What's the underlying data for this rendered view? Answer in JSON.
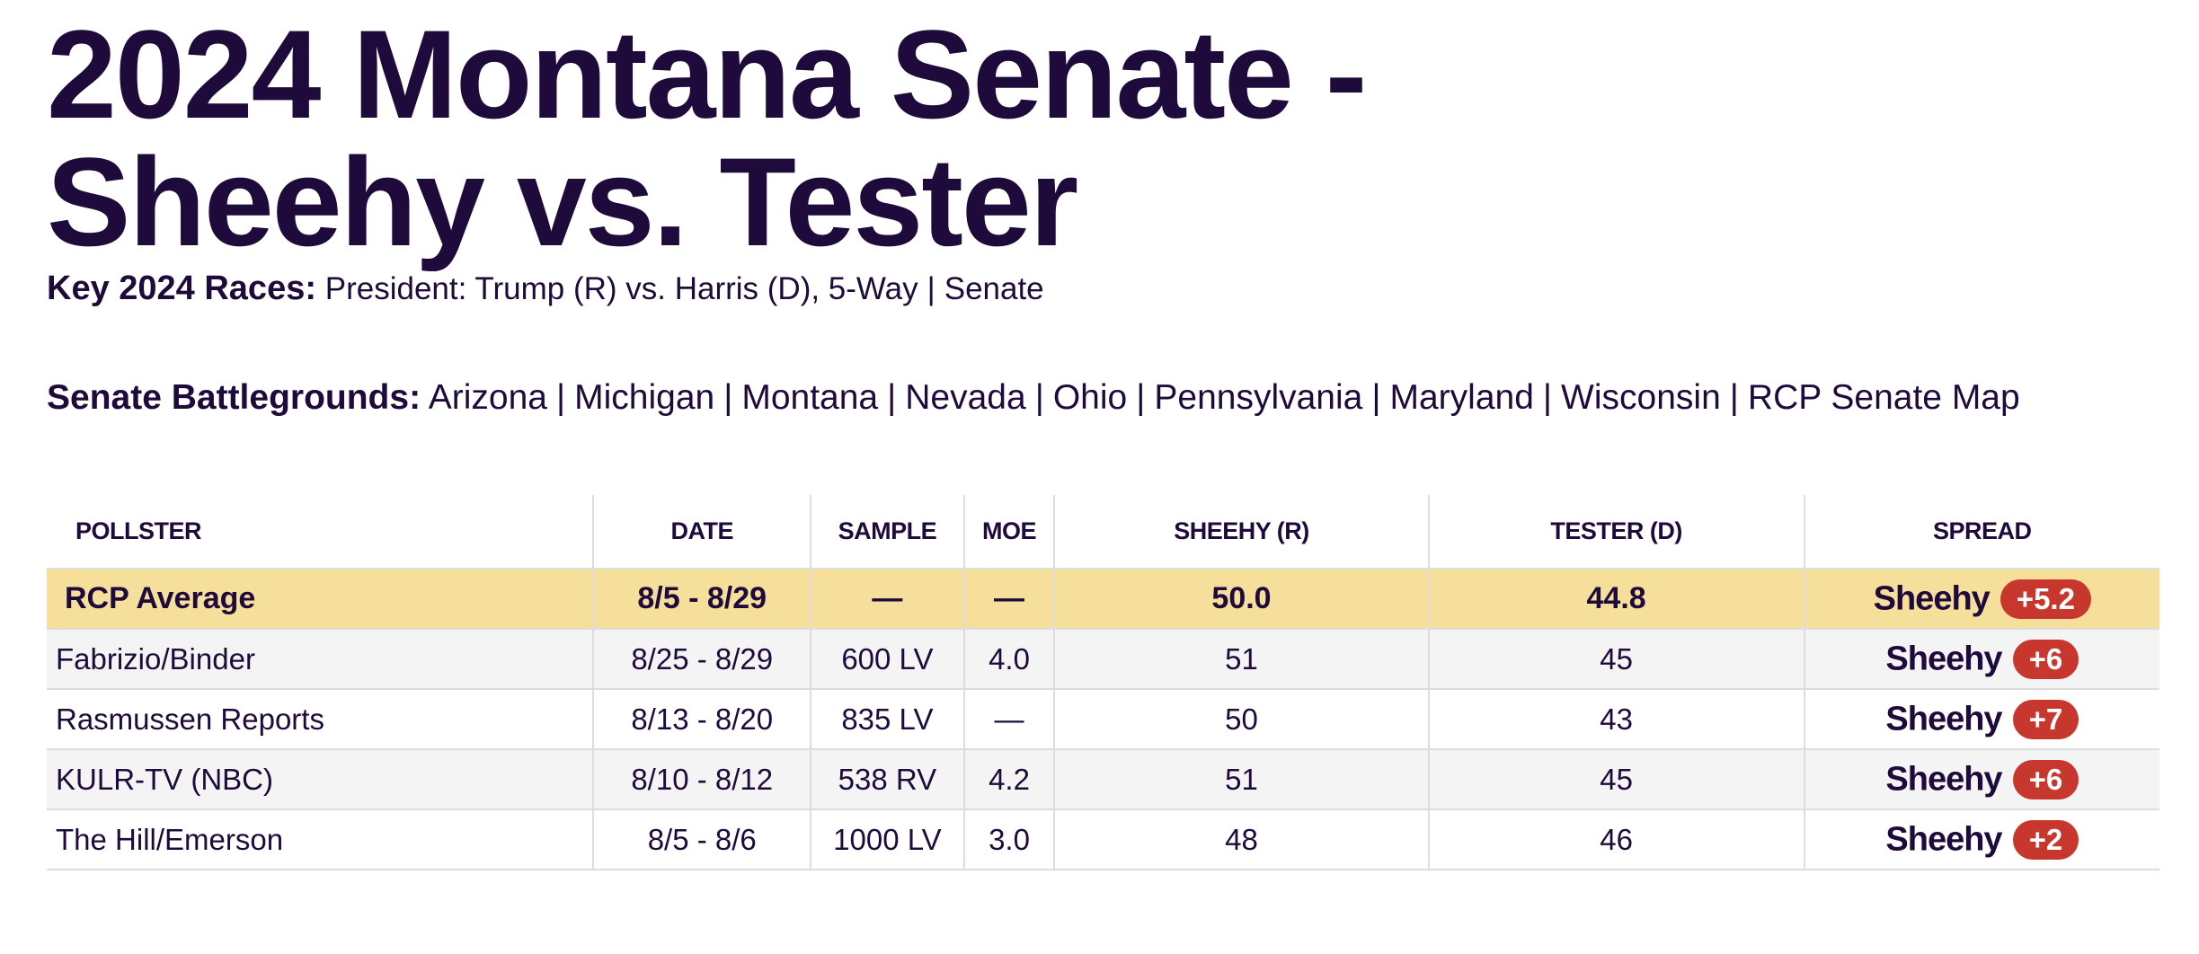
{
  "header": {
    "title": "2024 Montana Senate - Sheehy vs. Tester",
    "key_races": {
      "label": "Key 2024 Races:",
      "items": [
        "President: Trump (R) vs. Harris (D), 5-Way",
        "Senate"
      ]
    },
    "battlegrounds": {
      "label": "Senate Battlegrounds:",
      "items": [
        "Arizona",
        "Michigan",
        "Montana",
        "Nevada",
        "Ohio",
        "Pennsylvania",
        "Maryland",
        "Wisconsin",
        "RCP Senate Map"
      ]
    },
    "separator": "|"
  },
  "table": {
    "columns": [
      "POLLSTER",
      "DATE",
      "SAMPLE",
      "MOE",
      "SHEEHY (R)",
      "TESTER (D)",
      "SPREAD"
    ],
    "average": {
      "pollster": "RCP Average",
      "date": "8/5 - 8/29",
      "sample": "—",
      "moe": "—",
      "sheehy": "50.0",
      "tester": "44.8",
      "spread_leader": "Sheehy",
      "spread_margin": "+5.2"
    },
    "rows": [
      {
        "pollster": "Fabrizio/Binder",
        "date": "8/25 - 8/29",
        "sample": "600 LV",
        "moe": "4.0",
        "sheehy": "51",
        "tester": "45",
        "spread_leader": "Sheehy",
        "spread_margin": "+6"
      },
      {
        "pollster": "Rasmussen Reports",
        "date": "8/13 - 8/20",
        "sample": "835 LV",
        "moe": "—",
        "sheehy": "50",
        "tester": "43",
        "spread_leader": "Sheehy",
        "spread_margin": "+7"
      },
      {
        "pollster": "KULR-TV (NBC)",
        "date": "8/10 - 8/12",
        "sample": "538 RV",
        "moe": "4.2",
        "sheehy": "51",
        "tester": "45",
        "spread_leader": "Sheehy",
        "spread_margin": "+6"
      },
      {
        "pollster": "The Hill/Emerson",
        "date": "8/5 - 8/6",
        "sample": "1000 LV",
        "moe": "3.0",
        "sheehy": "48",
        "tester": "46",
        "spread_leader": "Sheehy",
        "spread_margin": "+2"
      }
    ]
  }
}
